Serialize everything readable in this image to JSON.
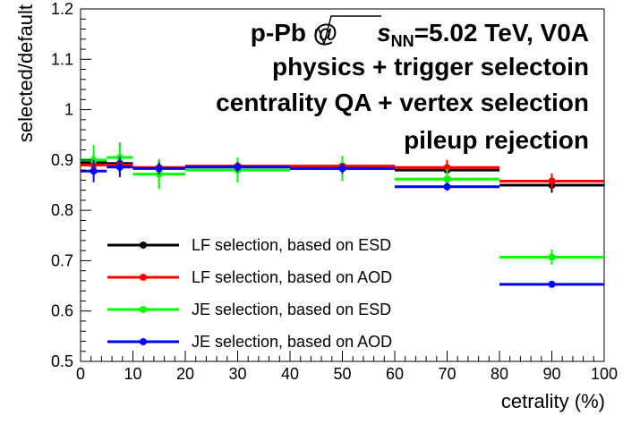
{
  "chart_data": {
    "type": "scatter",
    "xlabel": "cetrality (%)",
    "ylabel": "selected/default",
    "xlim": [
      0,
      100
    ],
    "ylim": [
      0.5,
      1.2
    ],
    "x_ticks": [
      "0",
      "10",
      "20",
      "30",
      "40",
      "50",
      "60",
      "70",
      "80",
      "90",
      "100"
    ],
    "y_ticks": [
      "0.5",
      "0.6",
      "0.7",
      "0.8",
      "0.9",
      "1",
      "1.1",
      "1.2"
    ],
    "annotation": {
      "line1_prefix": "p-Pb @",
      "line1_var": "s",
      "line1_sub": "NN",
      "line1_suffix": "=5.02 TeV, V0A",
      "line2": "physics + trigger selectoin",
      "line3": "centrality QA + vertex selection",
      "line4": "pileup rejection"
    },
    "legend_placement": "lower-left",
    "series": [
      {
        "name": "LF selection, based on ESD",
        "color": "#000000",
        "points": [
          {
            "x": 2.5,
            "xlo": 0,
            "xhi": 5,
            "y": 0.895,
            "err": 0.015
          },
          {
            "x": 7.5,
            "xlo": 5,
            "xhi": 10,
            "y": 0.893,
            "err": 0.015
          },
          {
            "x": 15,
            "xlo": 10,
            "xhi": 20,
            "y": 0.884,
            "err": 0.015
          },
          {
            "x": 30,
            "xlo": 20,
            "xhi": 40,
            "y": 0.887,
            "err": 0.015
          },
          {
            "x": 50,
            "xlo": 40,
            "xhi": 60,
            "y": 0.885,
            "err": 0.015
          },
          {
            "x": 70,
            "xlo": 60,
            "xhi": 80,
            "y": 0.88,
            "err": 0.015
          },
          {
            "x": 90,
            "xlo": 80,
            "xhi": 100,
            "y": 0.85,
            "err": 0.015
          }
        ]
      },
      {
        "name": "LF selection, based on AOD",
        "color": "#ff0000",
        "points": [
          {
            "x": 2.5,
            "xlo": 0,
            "xhi": 5,
            "y": 0.89,
            "err": 0.015
          },
          {
            "x": 7.5,
            "xlo": 5,
            "xhi": 10,
            "y": 0.89,
            "err": 0.015
          },
          {
            "x": 15,
            "xlo": 10,
            "xhi": 20,
            "y": 0.885,
            "err": 0.015
          },
          {
            "x": 30,
            "xlo": 20,
            "xhi": 40,
            "y": 0.888,
            "err": 0.015
          },
          {
            "x": 50,
            "xlo": 40,
            "xhi": 60,
            "y": 0.888,
            "err": 0.015
          },
          {
            "x": 70,
            "xlo": 60,
            "xhi": 80,
            "y": 0.885,
            "err": 0.015
          },
          {
            "x": 90,
            "xlo": 80,
            "xhi": 100,
            "y": 0.858,
            "err": 0.015
          }
        ]
      },
      {
        "name": "JE selection, based on ESD",
        "color": "#00ff00",
        "points": [
          {
            "x": 2.5,
            "xlo": 0,
            "xhi": 5,
            "y": 0.9,
            "err": 0.03
          },
          {
            "x": 7.5,
            "xlo": 5,
            "xhi": 10,
            "y": 0.905,
            "err": 0.03
          },
          {
            "x": 15,
            "xlo": 10,
            "xhi": 20,
            "y": 0.872,
            "err": 0.03
          },
          {
            "x": 30,
            "xlo": 20,
            "xhi": 40,
            "y": 0.88,
            "err": 0.025
          },
          {
            "x": 50,
            "xlo": 40,
            "xhi": 60,
            "y": 0.883,
            "err": 0.025
          },
          {
            "x": 70,
            "xlo": 60,
            "xhi": 80,
            "y": 0.862,
            "err": 0.02
          },
          {
            "x": 90,
            "xlo": 80,
            "xhi": 100,
            "y": 0.707,
            "err": 0.015
          }
        ]
      },
      {
        "name": "JE selection, based on AOD",
        "color": "#0000ff",
        "points": [
          {
            "x": 2.5,
            "xlo": 0,
            "xhi": 5,
            "y": 0.878,
            "err": 0.022
          },
          {
            "x": 7.5,
            "xlo": 5,
            "xhi": 10,
            "y": 0.886,
            "err": 0.02
          },
          {
            "x": 15,
            "xlo": 10,
            "xhi": 20,
            "y": 0.883,
            "err": 0.012
          },
          {
            "x": 30,
            "xlo": 20,
            "xhi": 40,
            "y": 0.886,
            "err": 0.01
          },
          {
            "x": 50,
            "xlo": 40,
            "xhi": 60,
            "y": 0.883,
            "err": 0.01
          },
          {
            "x": 70,
            "xlo": 60,
            "xhi": 80,
            "y": 0.847,
            "err": 0.008
          },
          {
            "x": 90,
            "xlo": 80,
            "xhi": 100,
            "y": 0.653,
            "err": 0.006
          }
        ]
      }
    ]
  }
}
